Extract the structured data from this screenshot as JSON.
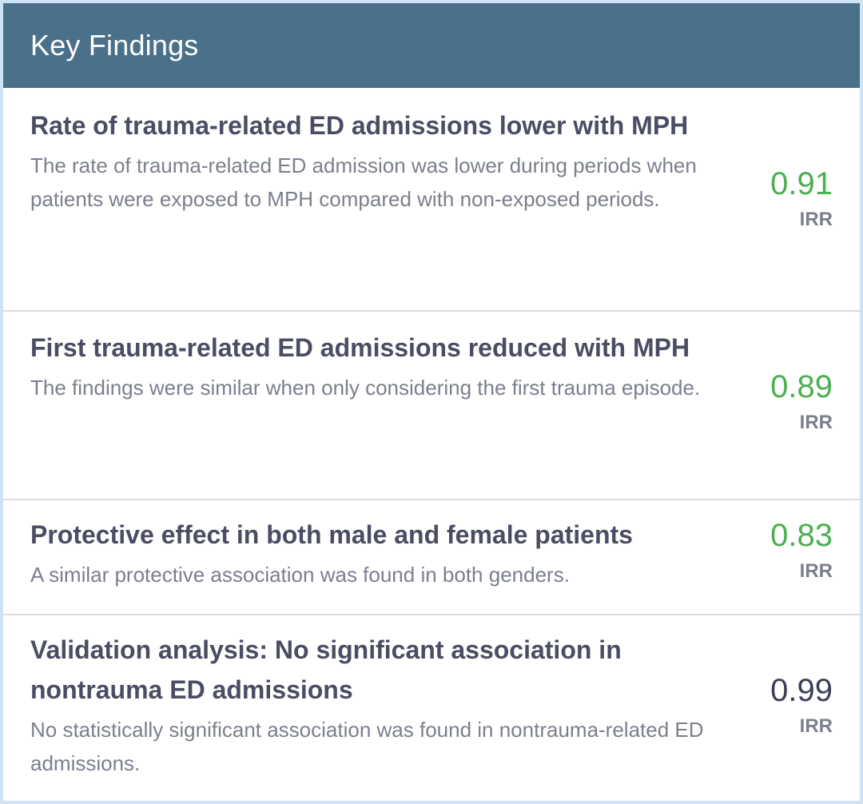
{
  "header": {
    "title": "Key Findings"
  },
  "findings": [
    {
      "title": "Rate of trauma-related ED admissions lower with MPH",
      "description": "The rate of trauma-related ED admission was lower during periods when patients were exposed to MPH compared with non-exposed periods.",
      "value": "0.91",
      "label": "IRR"
    },
    {
      "title": "First trauma-related ED admissions reduced with MPH",
      "description": "The findings were similar when only considering the first trauma episode.",
      "value": "0.89",
      "label": "IRR"
    },
    {
      "title": "Protective effect in both male and female patients",
      "description": "A similar protective association was found in both genders.",
      "value": "0.83",
      "label": "IRR"
    },
    {
      "title": "Validation analysis: No significant association in nontrauma ED admissions",
      "description": "No statistically significant association was found in nontrauma-related ED admissions.",
      "value": "0.99",
      "label": "IRR"
    }
  ],
  "colors": {
    "header_bg": "#4b7089",
    "significant_value": "#4caf50",
    "nonsignificant_value": "#3c3f57"
  }
}
